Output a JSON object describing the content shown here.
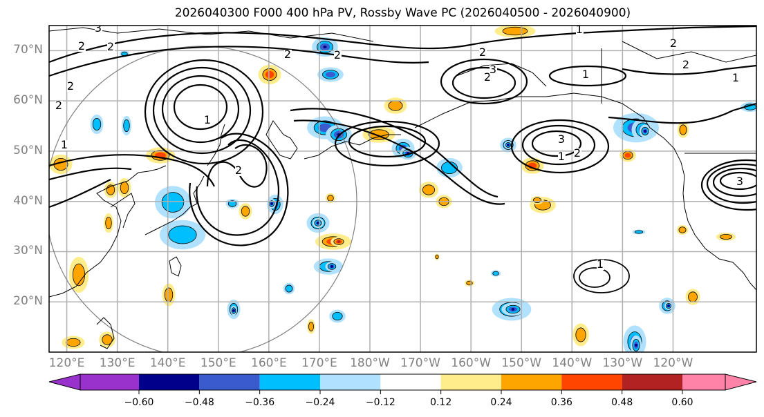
{
  "title": "2026040300 F000 400 hPa PV, Rossby Wave PC (2026040500 - 2026040900)",
  "map": {
    "lat_labels": [
      "70°N",
      "60°N",
      "50°N",
      "40°N",
      "30°N",
      "20°N"
    ],
    "lat_values": [
      70,
      60,
      50,
      40,
      30,
      20
    ],
    "lon_labels": [
      "120°E",
      "130°E",
      "140°E",
      "150°E",
      "160°E",
      "170°E",
      "180°W",
      "170°W",
      "160°W",
      "150°W",
      "140°W",
      "130°W",
      "120°W"
    ],
    "lon_values": [
      120,
      130,
      140,
      150,
      160,
      170,
      180,
      190,
      200,
      210,
      220,
      230,
      240
    ],
    "extent": {
      "lon_min": 116.5,
      "lon_max": 256.5,
      "lat_min": 10,
      "lat_max": 75
    },
    "contour_labels": [
      "3",
      "2",
      "2",
      "2",
      "2",
      "2",
      "2",
      "1",
      "2",
      "2",
      "1",
      "2",
      "3",
      "1",
      "2",
      "1",
      "1",
      "3",
      "2",
      "1",
      "2",
      "3",
      "1"
    ],
    "colors": {
      "grid": "#b0b0b0",
      "circle": "#808080",
      "coast": "#000000"
    }
  },
  "colorbar": {
    "ticks": [
      "−0.60",
      "−0.48",
      "−0.36",
      "−0.24",
      "−0.12",
      "0.12",
      "0.24",
      "0.36",
      "0.48",
      "0.60"
    ],
    "tick_values": [
      -0.6,
      -0.48,
      -0.36,
      -0.24,
      -0.12,
      0.12,
      0.24,
      0.36,
      0.48,
      0.6
    ],
    "under_color": "#9932cc",
    "over_color": "#ff82a8",
    "bins": [
      {
        "color": "#00008b"
      },
      {
        "color": "#3a5bcd"
      },
      {
        "color": "#00bfff"
      },
      {
        "color": "#b0e2ff"
      },
      {
        "color": "#ffffff"
      },
      {
        "color": "#ffec8b"
      },
      {
        "color": "#ffa500"
      },
      {
        "color": "#ff4500"
      },
      {
        "color": "#b22222"
      },
      {
        "color": "#ff82a8"
      }
    ]
  },
  "chart_data": {
    "type": "heatmap",
    "title": "2026040300 F000 400 hPa PV, Rossby Wave PC (2026040500 - 2026040900)",
    "xlabel": "",
    "ylabel": "",
    "x_ticks": [
      "120°E",
      "130°E",
      "140°E",
      "150°E",
      "160°E",
      "170°E",
      "180°W",
      "170°W",
      "160°W",
      "150°W",
      "140°W",
      "130°W",
      "120°W"
    ],
    "y_ticks": [
      "70°N",
      "60°N",
      "50°N",
      "40°N",
      "30°N",
      "20°N"
    ],
    "colorbar_levels": [
      -0.6,
      -0.48,
      -0.36,
      -0.24,
      -0.12,
      0.12,
      0.24,
      0.36,
      0.48,
      0.6
    ],
    "contour_field": "400 hPa PV (PVU)",
    "shaded_field": "Rossby Wave PC",
    "grid": true
  }
}
